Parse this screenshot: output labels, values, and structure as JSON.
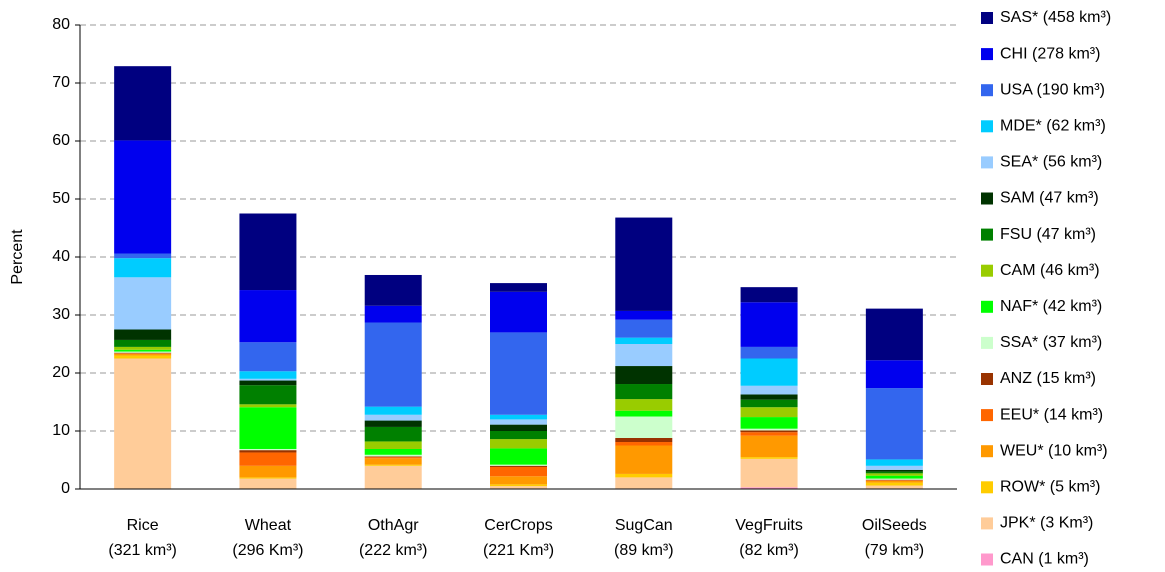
{
  "chart_data": {
    "type": "stacked_bar",
    "y_label": "Percent",
    "categories": [
      "Rice\n(321 km³)",
      "Wheat\n(296 Km³)",
      "OthAgr\n(222 km³)",
      "CerCrops\n(221 Km³)",
      "SugCan\n(89 km³)",
      "VegFruits\n(82 km³)",
      "OilSeeds\n(79 km³)"
    ],
    "ylim": [
      0,
      80
    ],
    "yticks": [
      0,
      10,
      20,
      30,
      40,
      50,
      60,
      70,
      80
    ],
    "grid": true,
    "series": [
      {
        "name": "SAS* (458 km³)",
        "color": "#000080",
        "values": [
          12.8,
          13.2,
          5.3,
          1.5,
          16.1,
          2.6,
          8.9
        ]
      },
      {
        "name": "CHI (278 km³)",
        "color": "#0000ee",
        "values": [
          19.5,
          9.0,
          2.9,
          7.0,
          1.5,
          7.7,
          4.8
        ]
      },
      {
        "name": "USA (190 km³)",
        "color": "#3366ee",
        "values": [
          0.8,
          5.0,
          14.5,
          14.2,
          3.1,
          2.0,
          12.3
        ]
      },
      {
        "name": "MDE* (62 km³)",
        "color": "#00ccff",
        "values": [
          3.3,
          1.3,
          1.4,
          0.8,
          1.1,
          4.7,
          1.1
        ]
      },
      {
        "name": "SEA* (56 km³)",
        "color": "#99ccff",
        "values": [
          9.0,
          0.3,
          1.0,
          0.9,
          3.8,
          1.5,
          0.7
        ]
      },
      {
        "name": "SAM (47 km³)",
        "color": "#003300",
        "values": [
          1.8,
          0.8,
          1.1,
          1.1,
          3.1,
          0.9,
          0.3
        ]
      },
      {
        "name": "FSU (47 km³)",
        "color": "#008000",
        "values": [
          1.2,
          3.3,
          2.5,
          1.4,
          2.6,
          1.3,
          0.3
        ]
      },
      {
        "name": "CAM (46 km³)",
        "color": "#99cc00",
        "values": [
          0.5,
          0.5,
          1.3,
          1.6,
          2.0,
          1.7,
          0.4
        ]
      },
      {
        "name": "NAF* (42 km³)",
        "color": "#00ff00",
        "values": [
          0.3,
          7.2,
          1.0,
          2.8,
          1.0,
          2.0,
          0.5
        ]
      },
      {
        "name": "SSA* (37 km³)",
        "color": "#ccffcc",
        "values": [
          0.2,
          0.2,
          0.3,
          0.2,
          3.7,
          0.3,
          0.2
        ]
      },
      {
        "name": "ANZ (15 km³)",
        "color": "#993300",
        "values": [
          0.1,
          0.4,
          0.1,
          0.2,
          0.7,
          0.3,
          0.1
        ]
      },
      {
        "name": "EEU* (14 km³)",
        "color": "#ff6600",
        "values": [
          0.1,
          2.3,
          0.2,
          1.6,
          0.6,
          0.6,
          0.1
        ]
      },
      {
        "name": "WEU* (10 km³)",
        "color": "#ff9900",
        "values": [
          0.3,
          2.0,
          1.1,
          1.4,
          4.9,
          3.7,
          0.3
        ]
      },
      {
        "name": "ROW* (5 km³)",
        "color": "#ffcc00",
        "values": [
          0.5,
          0.2,
          0.2,
          0.3,
          0.6,
          0.3,
          0.5
        ]
      },
      {
        "name": "JPK* (3 Km³)",
        "color": "#ffcc99",
        "values": [
          22.4,
          1.8,
          3.9,
          0.4,
          1.9,
          4.9,
          0.5
        ]
      },
      {
        "name": "CAN (1 km³)",
        "color": "#ff99cc",
        "values": [
          0.1,
          0,
          0.1,
          0.1,
          0.1,
          0.3,
          0.1
        ]
      }
    ]
  }
}
